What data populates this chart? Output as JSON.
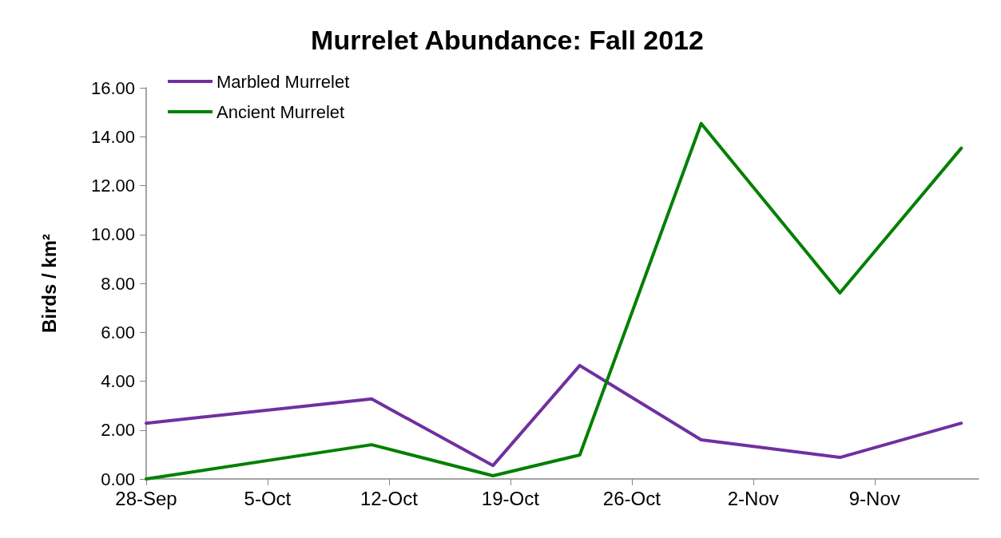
{
  "chart_data": {
    "type": "line",
    "title": "Murrelet Abundance: Fall 2012",
    "ylabel": "Birds / km²",
    "x": [
      "2012-09-28",
      "2012-10-11",
      "2012-10-18",
      "2012-10-23",
      "2012-10-30",
      "2012-11-07",
      "2012-11-14"
    ],
    "series": [
      {
        "name": "Marbled Murrelet",
        "color": "#7030a0",
        "values": [
          2.28,
          3.27,
          0.55,
          4.64,
          1.6,
          0.88,
          2.28
        ]
      },
      {
        "name": "Ancient Murrelet",
        "color": "#008000",
        "values": [
          0,
          1.4,
          0.13,
          0.98,
          14.54,
          7.61,
          13.53
        ]
      }
    ],
    "xlim": [
      "2012-09-28",
      "2012-11-15"
    ],
    "xticks": [
      {
        "value": "2012-09-28",
        "label": "28-Sep"
      },
      {
        "value": "2012-10-05",
        "label": "5-Oct"
      },
      {
        "value": "2012-10-12",
        "label": "12-Oct"
      },
      {
        "value": "2012-10-19",
        "label": "19-Oct"
      },
      {
        "value": "2012-10-26",
        "label": "26-Oct"
      },
      {
        "value": "2012-11-02",
        "label": "2-Nov"
      },
      {
        "value": "2012-11-09",
        "label": "9-Nov"
      }
    ],
    "ylim": [
      0,
      16
    ],
    "yticks": [
      {
        "value": 0,
        "label": "0.00"
      },
      {
        "value": 2,
        "label": "2.00"
      },
      {
        "value": 4,
        "label": "4.00"
      },
      {
        "value": 6,
        "label": "6.00"
      },
      {
        "value": 8,
        "label": "8.00"
      },
      {
        "value": 10,
        "label": "10.00"
      },
      {
        "value": 12,
        "label": "12.00"
      },
      {
        "value": 14,
        "label": "14.00"
      },
      {
        "value": 16,
        "label": "16.00"
      }
    ],
    "grid": false,
    "legend": "top left",
    "marker": "none",
    "line_style": "solid"
  }
}
